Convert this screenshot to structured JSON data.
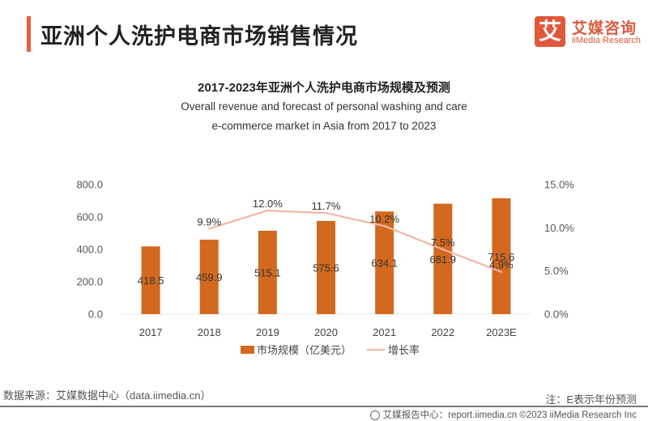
{
  "page": {
    "title": "亚洲个人洗护电商市场销售情况",
    "logo_mark": "艾",
    "logo_cn": "艾媒咨询",
    "logo_en": "iiMedia Research",
    "source": "数据来源：艾媒数据中心（data.iimedia.cn）",
    "note": "注：E表示年份预测",
    "footer": "艾媒报告中心：report.iimedia.cn  ©2023  iiMedia Research  Inc"
  },
  "colors": {
    "accent": "#e8603c",
    "bar": "#d2691e",
    "line": "#f0b7a4"
  },
  "chart_data": {
    "type": "bar",
    "title": "2017-2023年亚洲个人洗护电商市场规模及预测",
    "subtitle_line1": "Overall revenue and forecast of personal washing and care",
    "subtitle_line2": "e-commerce market in Asia from 2017 to 2023",
    "categories": [
      "2017",
      "2018",
      "2019",
      "2020",
      "2021",
      "2022",
      "2023E"
    ],
    "series": [
      {
        "name": "市场规模（亿美元）",
        "type": "bar",
        "axis": "left",
        "values": [
          418.5,
          459.9,
          515.1,
          575.6,
          634.1,
          681.9,
          715.6
        ],
        "labels": [
          "418.5",
          "459.9",
          "515.1",
          "575.6",
          "634.1",
          "681.9",
          "715.6"
        ]
      },
      {
        "name": "增长率",
        "type": "line",
        "axis": "right",
        "values": [
          null,
          9.9,
          12.0,
          11.7,
          10.2,
          7.5,
          4.9
        ],
        "labels": [
          "",
          "9.9%",
          "12.0%",
          "11.7%",
          "10.2%",
          "7.5%",
          "4.9%"
        ]
      }
    ],
    "y_left": {
      "min": 0,
      "max": 800,
      "ticks": [
        "0.0",
        "200.0",
        "400.0",
        "600.0",
        "800.0"
      ]
    },
    "y_right": {
      "min": 0,
      "max": 15,
      "ticks": [
        "0.0%",
        "5.0%",
        "10.0%",
        "15.0%"
      ]
    },
    "grid": false,
    "legend_position": "bottom"
  }
}
